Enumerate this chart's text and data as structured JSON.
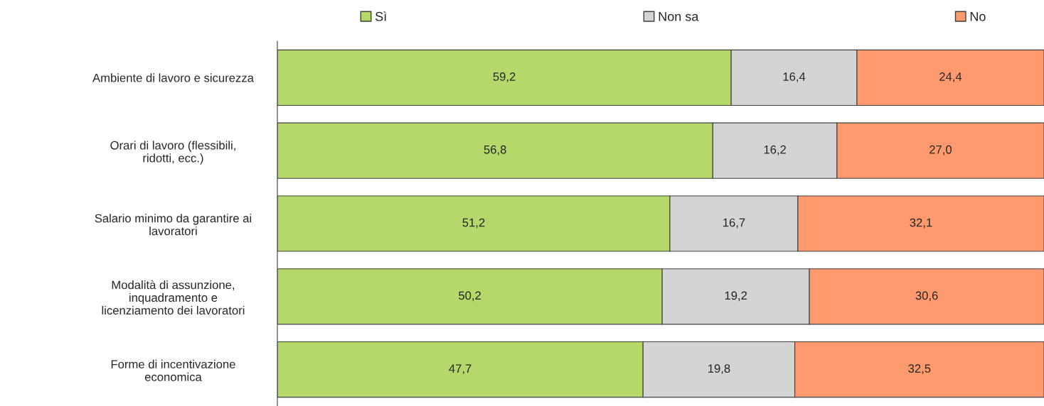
{
  "chart_data": {
    "type": "bar",
    "orientation": "horizontal",
    "stacked": true,
    "legend": "top",
    "tick_labels": "y",
    "categories": [
      "Ambiente di lavoro e sicurezza",
      "Orari di lavoro (flessibili,\nridotti, ecc.)",
      "Salario minimo da garantire ai\nlavoratori",
      "Modalità di assunzione,\ninquadramento e\nlicenziamento dei lavoratori",
      "Forme di incentivazione\neconomica"
    ],
    "series": [
      {
        "name": "Sì",
        "color": "#b5d86a",
        "values": [
          59.2,
          56.8,
          51.2,
          50.2,
          47.7
        ],
        "value_labels": [
          "59,2",
          "56,8",
          "51,2",
          "50,2",
          "47,7"
        ]
      },
      {
        "name": "Non sa",
        "color": "#d4d4d4",
        "values": [
          16.4,
          16.2,
          16.7,
          19.2,
          19.8
        ],
        "value_labels": [
          "16,4",
          "16,2",
          "16,7",
          "19,2",
          "19,8"
        ]
      },
      {
        "name": "No",
        "color": "#ff9a6e",
        "values": [
          24.4,
          27.0,
          32.1,
          30.6,
          32.5
        ],
        "value_labels": [
          "24,4",
          "27,0",
          "32,1",
          "30,6",
          "32,5"
        ]
      }
    ]
  }
}
